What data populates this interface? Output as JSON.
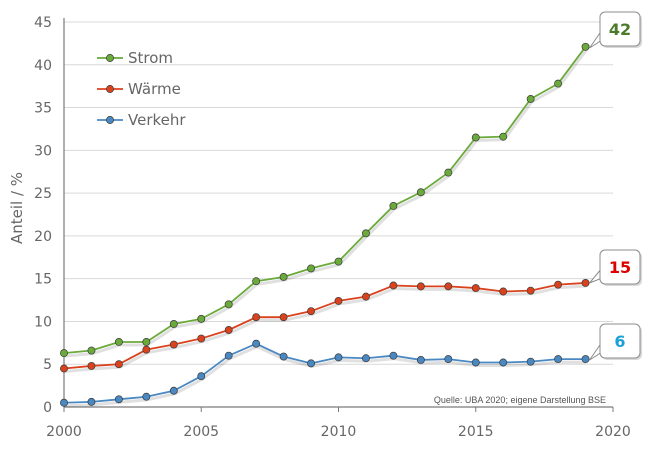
{
  "chart_data": {
    "type": "line",
    "title": "",
    "xlabel": "",
    "ylabel": "Anteil / %",
    "xlim": [
      2000,
      2020
    ],
    "ylim": [
      0,
      45
    ],
    "xticks": [
      "2000",
      "2005",
      "2010",
      "2015",
      "2020"
    ],
    "yticks": [
      "0",
      "5",
      "10",
      "15",
      "20",
      "25",
      "30",
      "35",
      "40",
      "45"
    ],
    "grid": "y",
    "legend_position": "top-left",
    "x": [
      2000,
      2001,
      2002,
      2003,
      2004,
      2005,
      2006,
      2007,
      2008,
      2009,
      2010,
      2011,
      2012,
      2013,
      2014,
      2015,
      2016,
      2017,
      2018,
      2019
    ],
    "series": [
      {
        "name": "Strom",
        "color": "#6aaa3a",
        "values": [
          6.3,
          6.6,
          7.6,
          7.6,
          9.7,
          10.3,
          12.0,
          14.7,
          15.2,
          16.2,
          17.0,
          20.3,
          23.5,
          25.1,
          27.4,
          31.5,
          31.6,
          36.0,
          37.8,
          42.1
        ],
        "callout": "42",
        "callout_color": "#4a7a2a"
      },
      {
        "name": "Wärme",
        "color": "#d9421c",
        "values": [
          4.5,
          4.8,
          5.0,
          6.7,
          7.3,
          8.0,
          9.0,
          10.5,
          10.5,
          11.2,
          12.4,
          12.9,
          14.2,
          14.1,
          14.1,
          13.9,
          13.5,
          13.6,
          14.3,
          14.5
        ],
        "callout": "15",
        "callout_color": "#dd0000"
      },
      {
        "name": "Verkehr",
        "color": "#4a88c2",
        "values": [
          0.5,
          0.6,
          0.9,
          1.2,
          1.9,
          3.6,
          6.0,
          7.4,
          5.9,
          5.1,
          5.8,
          5.7,
          6.0,
          5.5,
          5.6,
          5.2,
          5.2,
          5.3,
          5.6,
          5.6
        ],
        "callout": "6",
        "callout_color": "#1ba1d8"
      }
    ],
    "source_note": "Quelle: UBA 2020; eigene Darstellung BSE"
  }
}
